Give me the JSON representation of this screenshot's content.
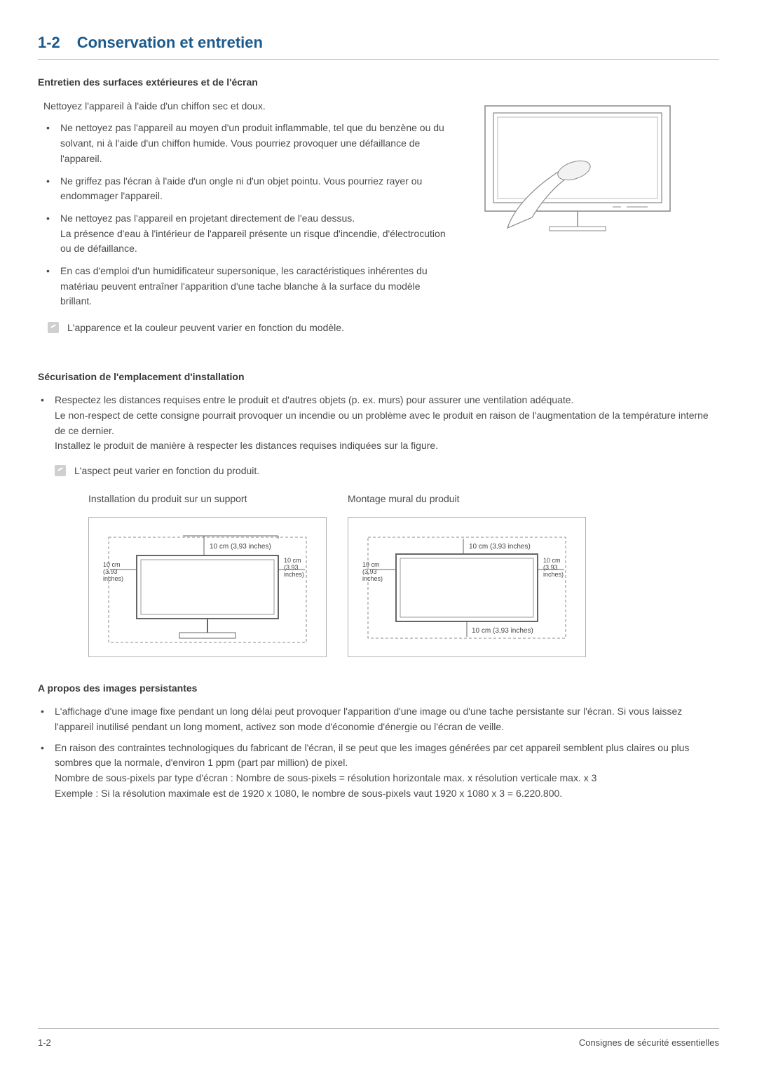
{
  "header": {
    "number": "1-2",
    "title": "Conservation et entretien"
  },
  "section1": {
    "heading": "Entretien des surfaces extérieures et de l'écran",
    "intro": "Nettoyez l'appareil à l'aide d'un chiffon sec et doux.",
    "bullets": [
      "Ne nettoyez pas l'appareil au moyen d'un produit inflammable, tel que du benzène ou du solvant, ni à l'aide d'un chiffon humide. Vous pourriez provoquer une défaillance de l'appareil.",
      "Ne griffez pas l'écran à l'aide d'un ongle ni d'un objet pointu. Vous pourriez rayer ou endommager l'appareil.",
      "Ne nettoyez pas l'appareil en projetant directement de l'eau dessus.\nLa présence d'eau à l'intérieur de l'appareil présente un risque d'incendie, d'électrocution ou de défaillance.",
      "En cas d'emploi d'un humidificateur supersonique, les caractéristiques inhérentes du matériau peuvent entraîner l'apparition d'une tache blanche à la surface du modèle brillant."
    ],
    "note": "L'apparence et la couleur peuvent varier en fonction du modèle."
  },
  "section2": {
    "heading": "Sécurisation de l'emplacement d'installation",
    "bullet_p1": "Respectez les distances requises entre le produit et d'autres objets (p. ex. murs) pour assurer une ventilation adéquate.",
    "bullet_p2": "Le non-respect de cette consigne pourrait provoquer un incendie ou un problème avec le produit en raison de l'augmentation de la température interne de ce dernier.",
    "bullet_p3": "Installez le produit de manière à respecter les distances requises indiquées sur la figure.",
    "note": "L'aspect peut varier en fonction du produit.",
    "diagram1_caption": "Installation du produit sur un support",
    "diagram2_caption": "Montage mural du produit",
    "clearance_long": "10 cm (3,93 inches)",
    "clearance_short": "10 cm\n(3.93\ninches)"
  },
  "section3": {
    "heading": "A propos des images persistantes",
    "bullets": [
      "L'affichage d'une image fixe pendant un long délai peut provoquer l'apparition d'une image ou d'une tache persistante sur l'écran. Si vous laissez l'appareil inutilisé pendant un long moment, activez son mode d'économie d'énergie ou l'écran de veille.",
      "En raison des contraintes technologiques du fabricant de l'écran, il se peut que les images générées par cet appareil semblent plus claires ou plus sombres que la normale, d'environ 1 ppm (part par million) de pixel.\nNombre de sous-pixels par type d'écran : Nombre de sous-pixels = résolution horizontale max. x résolution verticale max. x 3\nExemple : Si la résolution maximale est de 1920 x 1080, le nombre de sous-pixels vaut 1920 x 1080 x 3 = 6.220.800."
    ]
  },
  "footer": {
    "left": "1-2",
    "right": "Consignes de sécurité essentielles"
  },
  "colors": {
    "heading": "#1a5a8c",
    "rule": "#b8b8b8",
    "text": "#4a4a4a",
    "svg_stroke": "#888888"
  }
}
